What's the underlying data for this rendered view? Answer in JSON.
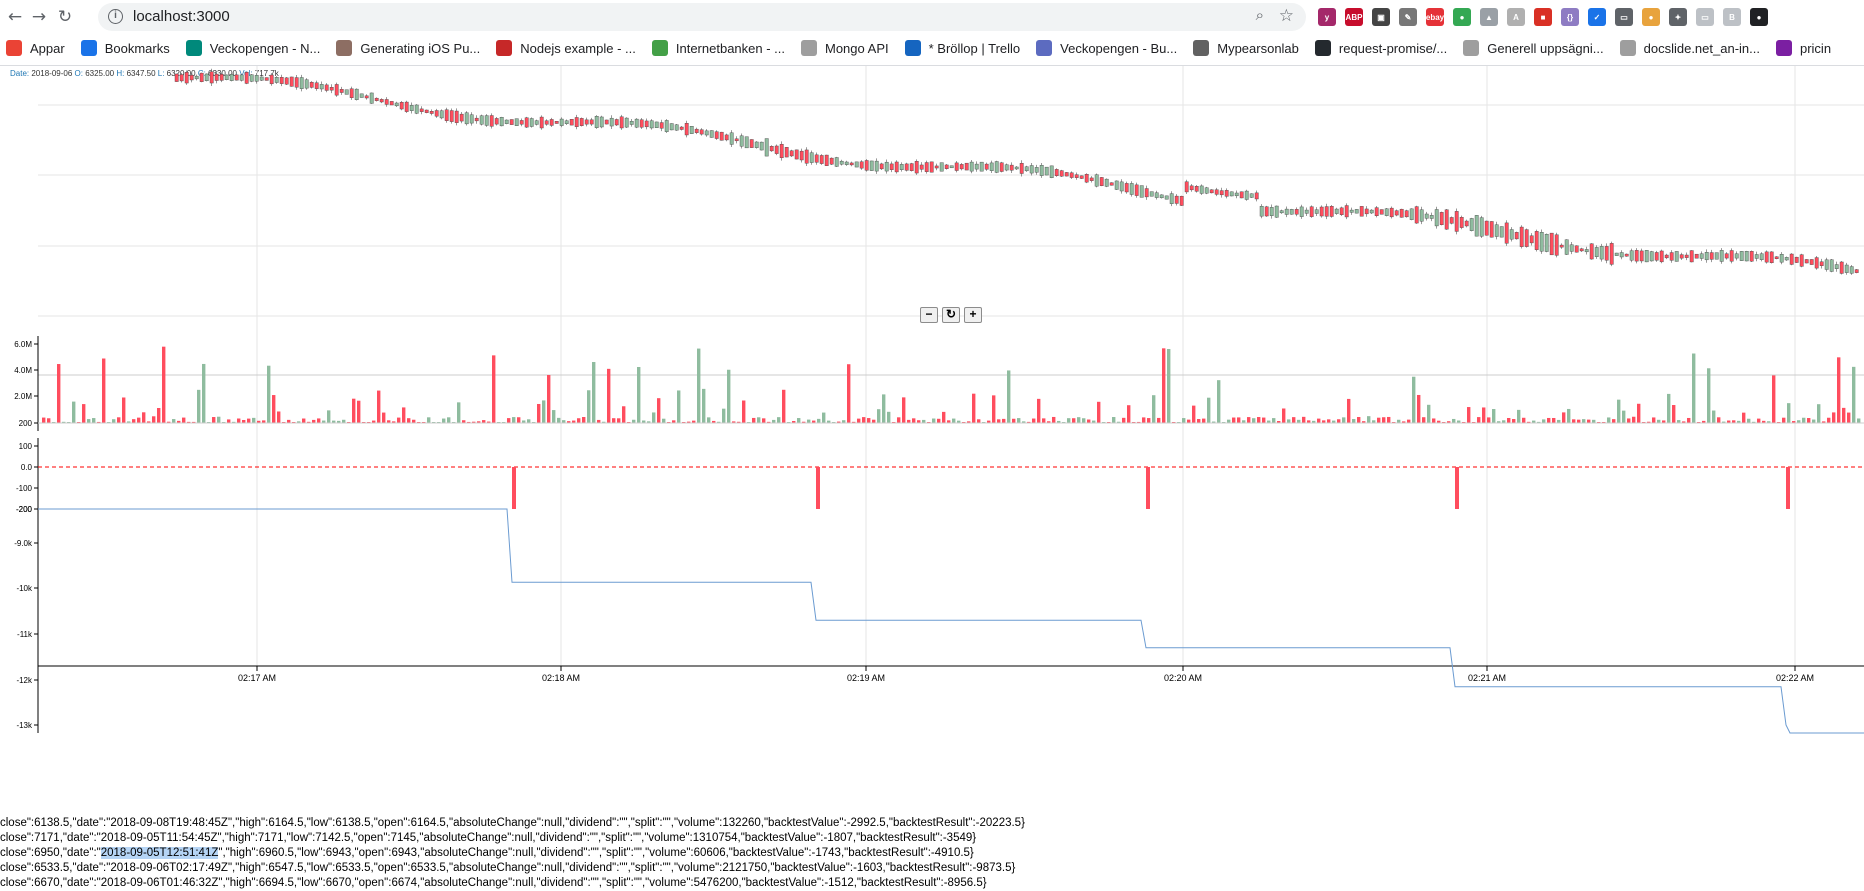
{
  "browser": {
    "url": "localhost:3000",
    "nav": {
      "back_icon": "←",
      "forward_icon": "→",
      "reload_icon": "↻"
    },
    "zoom_icon": "⌕",
    "star_icon": "☆",
    "extensions": [
      {
        "name": "yoast-icon",
        "label": "y",
        "color": "#a4286a"
      },
      {
        "name": "adblock-icon",
        "label": "ABP",
        "color": "#c70d2c"
      },
      {
        "name": "incognito-icon",
        "label": "▣",
        "color": "#444444"
      },
      {
        "name": "pen-icon",
        "label": "✎",
        "color": "#777777"
      },
      {
        "name": "ebay-icon",
        "label": "ebay",
        "color": "#e53238"
      },
      {
        "name": "color-picker-icon",
        "label": "●",
        "color": "#34a853"
      },
      {
        "name": "triangle-icon",
        "label": "▲",
        "color": "#9aa0a6"
      },
      {
        "name": "angular-icon",
        "label": "A",
        "color": "#b0b0b0"
      },
      {
        "name": "screenshot-icon",
        "label": "■",
        "color": "#d93025"
      },
      {
        "name": "json-icon",
        "label": "{}",
        "color": "#8e7cc3"
      },
      {
        "name": "shield-icon",
        "label": "✓",
        "color": "#1a73e8"
      },
      {
        "name": "cast-icon",
        "label": "▭",
        "color": "#5f6368"
      },
      {
        "name": "cookie-icon",
        "label": "●",
        "color": "#e8a33d"
      },
      {
        "name": "puzzle-icon",
        "label": "✦",
        "color": "#5f6368"
      },
      {
        "name": "battery-icon",
        "label": "▭",
        "color": "#bdc1c6"
      },
      {
        "name": "b-icon",
        "label": "B",
        "color": "#bdc1c6"
      },
      {
        "name": "profile-icon",
        "label": "●",
        "color": "#202124"
      }
    ]
  },
  "bookmarks": [
    {
      "name": "bookmark-apps",
      "label": "Appar",
      "color": "#ea4335"
    },
    {
      "name": "bookmark-bookmarks",
      "label": "Bookmarks",
      "color": "#1a73e8"
    },
    {
      "name": "bookmark-veckopengen-1",
      "label": "Veckopengen - N...",
      "color": "#00897b"
    },
    {
      "name": "bookmark-generating-ios",
      "label": "Generating iOS Pu...",
      "color": "#8d6e63"
    },
    {
      "name": "bookmark-nodejs",
      "label": "Nodejs example - ...",
      "color": "#c62828"
    },
    {
      "name": "bookmark-internetbanken",
      "label": "Internetbanken - ...",
      "color": "#43a047"
    },
    {
      "name": "bookmark-mongo",
      "label": "Mongo API",
      "color": "#9e9e9e"
    },
    {
      "name": "bookmark-trello",
      "label": "* Bröllop | Trello",
      "color": "#1565c0"
    },
    {
      "name": "bookmark-veckopengen-2",
      "label": "Veckopengen - Bu...",
      "color": "#5c6bc0"
    },
    {
      "name": "bookmark-mypearsonlab",
      "label": "Mypearsonlab",
      "color": "#616161"
    },
    {
      "name": "bookmark-request-promise",
      "label": "request-promise/...",
      "color": "#24292e"
    },
    {
      "name": "bookmark-generell",
      "label": "Generell uppsägni...",
      "color": "#9e9e9e"
    },
    {
      "name": "bookmark-docslide",
      "label": "docslide.net_an-in...",
      "color": "#9e9e9e"
    },
    {
      "name": "bookmark-pricin",
      "label": "pricin",
      "color": "#7b1fa2"
    }
  ],
  "tooltip": {
    "date_key": "Date:",
    "date_val": "2018-09-06",
    "o_key": "O:",
    "o_val": "6325.00",
    "h_key": "H:",
    "h_val": "6347.50",
    "l_key": "L:",
    "l_val": "6320.00",
    "c_key": "C:",
    "c_val": "6330.00",
    "vol_key": "Vol:",
    "vol_val": "717.7k"
  },
  "zoom_controls": {
    "minus": "−",
    "reset": "↻",
    "plus": "+"
  },
  "colors": {
    "up": "#8fbc9f",
    "down": "#ff4d5e",
    "line": "#6b9bd1",
    "grid": "#e6e6e6",
    "zero": "#ff0000"
  },
  "chart_data": [
    {
      "type": "candlestick",
      "x_ticks": [
        "02:17 AM",
        "02:18 AM",
        "02:19 AM",
        "02:20 AM",
        "02:21 AM",
        "02:22 AM"
      ],
      "grid": true,
      "trend": "declining"
    },
    {
      "type": "bar",
      "title": "",
      "y_ticks": [
        "6.0M",
        "4.0M",
        "2.0M",
        "200"
      ],
      "ylim": [
        0,
        6500000
      ],
      "grid": true
    },
    {
      "type": "bar",
      "y_ticks": [
        "100",
        "0.0",
        "-100",
        "-200"
      ],
      "ylim": [
        -200,
        100
      ],
      "categories": [
        "02:17:52",
        "02:18:52",
        "02:19:55",
        "02:20:55",
        "02:21:58"
      ],
      "values": [
        -200,
        -200,
        -200,
        -200,
        -200
      ]
    },
    {
      "type": "line",
      "y_ticks": [
        "-200",
        "-9.0k",
        "-10k",
        "-11k",
        "-12k",
        "-13k"
      ],
      "x": [
        "02:16:00",
        "02:17:52",
        "02:18:52",
        "02:19:55",
        "02:20:55",
        "02:21:58",
        "02:22:00"
      ],
      "values": [
        -200,
        -9873.5,
        -10700,
        -11300,
        -12150,
        -13000,
        -13000
      ]
    }
  ],
  "json_lines": [
    {
      "pre": "close\":6138.5,\"date\":\"2018-09-08T19:48:45Z\",\"high\":6164.5,\"low\":6138.5,\"open\":6164.5,\"absoluteChange\":null,\"dividend\":\"\",\"split\":\"\",\"volume\":132260,\"backtestValue\":-2992.5,\"backtestResult\":-20223.5}",
      "hl": "",
      "post": ""
    },
    {
      "pre": "close\":7171,\"date\":\"2018-09-05T11:54:45Z\",\"high\":7171,\"low\":7142.5,\"open\":7145,\"absoluteChange\":null,\"dividend\":\"\",\"split\":\"\",\"volume\":1310754,\"backtestValue\":-1807,\"backtestResult\":-3549}",
      "hl": "",
      "post": ""
    },
    {
      "pre": "close\":6950,\"date\":\"",
      "hl": "2018-09-05T12:51:41Z",
      "post": "\",\"high\":6960.5,\"low\":6943,\"open\":6943,\"absoluteChange\":null,\"dividend\":\"\",\"split\":\"\",\"volume\":60606,\"backtestValue\":-1743,\"backtestResult\":-4910.5}"
    },
    {
      "pre": "close\":6533.5,\"date\":\"2018-09-06T02:17:49Z\",\"high\":6547.5,\"low\":6533.5,\"open\":6533.5,\"absoluteChange\":null,\"dividend\":\"\",\"split\":\"\",\"volume\":2121750,\"backtestValue\":-1603,\"backtestResult\":-9873.5}",
      "hl": "",
      "post": ""
    },
    {
      "pre": "close\":6670,\"date\":\"2018-09-06T01:46:32Z\",\"high\":6694.5,\"low\":6670,\"open\":6674,\"absoluteChange\":null,\"dividend\":\"\",\"split\":\"\",\"volume\":5476200,\"backtestValue\":-1512,\"backtestResult\":-8956.5}",
      "hl": "",
      "post": ""
    }
  ]
}
